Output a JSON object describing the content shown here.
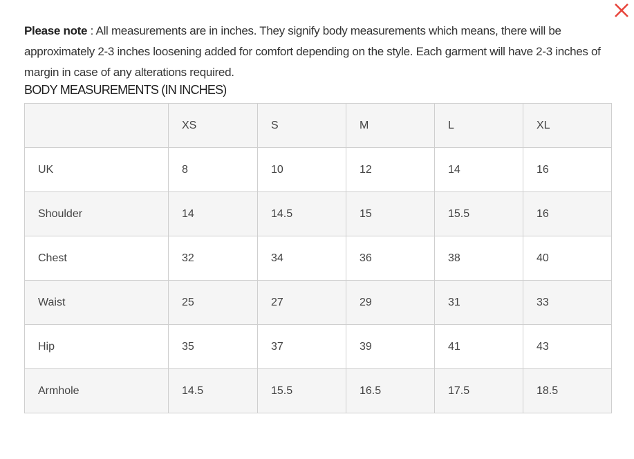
{
  "close_color": "#e8453c",
  "note": {
    "label": "Please note",
    "text": " : All measurements are in inches. They signify body measurements which means, there will be approximately 2-3 inches loosening added for comfort depending on the style. Each garment will have 2-3 inches of margin in case of any alterations required."
  },
  "table_title": "BODY MEASUREMENTS (IN INCHES)",
  "table": {
    "headers": [
      "",
      "XS",
      "S",
      "M",
      "L",
      "XL"
    ],
    "rows": [
      [
        "UK",
        "8",
        "10",
        "12",
        "14",
        "16"
      ],
      [
        "Shoulder",
        "14",
        "14.5",
        "15",
        "15.5",
        "16"
      ],
      [
        "Chest",
        "32",
        "34",
        "36",
        "38",
        "40"
      ],
      [
        "Waist",
        "25",
        "27",
        "29",
        "31",
        "33"
      ],
      [
        "Hip",
        "35",
        "37",
        "39",
        "41",
        "43"
      ],
      [
        "Armhole",
        "14.5",
        "15.5",
        "16.5",
        "17.5",
        "18.5"
      ]
    ]
  }
}
